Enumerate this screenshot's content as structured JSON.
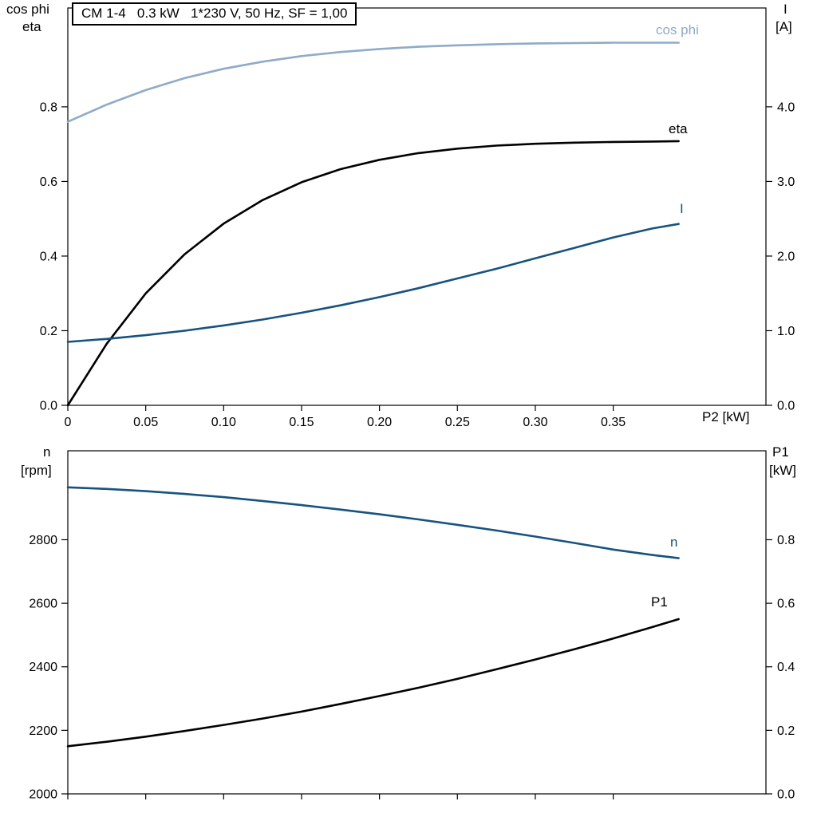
{
  "colors": {
    "light_blue": "#8fabc7",
    "dark_blue": "#17537f",
    "black": "#000000"
  },
  "chart_data": [
    {
      "type": "line",
      "title": "CM 1-4   0.3 kW   1*230 V, 50 Hz, SF = 1,00",
      "xlabel": "P2 [kW]",
      "ylabel_left_1": "cos phi",
      "ylabel_left_2": "eta",
      "ylabel_right_1": "I",
      "ylabel_right_2": "[A]",
      "xlim": [
        0,
        0.448
      ],
      "ylim_left": [
        0,
        1.065
      ],
      "ylim_right": [
        0,
        5.325
      ],
      "grid": false,
      "x_ticks": [
        {
          "v": 0,
          "label": "0"
        },
        {
          "v": 0.05,
          "label": "0.05"
        },
        {
          "v": 0.1,
          "label": "0.10"
        },
        {
          "v": 0.15,
          "label": "0.15"
        },
        {
          "v": 0.2,
          "label": "0.20"
        },
        {
          "v": 0.25,
          "label": "0.25"
        },
        {
          "v": 0.3,
          "label": "0.30"
        },
        {
          "v": 0.35,
          "label": "0.35"
        }
      ],
      "y_ticks_left": [
        {
          "v": 0,
          "label": "0.0"
        },
        {
          "v": 0.2,
          "label": "0.2"
        },
        {
          "v": 0.4,
          "label": "0.4"
        },
        {
          "v": 0.6,
          "label": "0.6"
        },
        {
          "v": 0.8,
          "label": "0.8"
        }
      ],
      "y_ticks_right": [
        {
          "v": 0,
          "label": "0.0"
        },
        {
          "v": 1,
          "label": "1.0"
        },
        {
          "v": 2,
          "label": "2.0"
        },
        {
          "v": 3,
          "label": "3.0"
        },
        {
          "v": 4,
          "label": "4.0"
        }
      ],
      "series": [
        {
          "name": "cos phi",
          "axis": "left",
          "color": "light_blue",
          "x": [
            0,
            0.025,
            0.05,
            0.075,
            0.1,
            0.125,
            0.15,
            0.175,
            0.2,
            0.225,
            0.25,
            0.275,
            0.3,
            0.325,
            0.35,
            0.375,
            0.392
          ],
          "y": [
            0.76,
            0.806,
            0.845,
            0.877,
            0.902,
            0.921,
            0.936,
            0.947,
            0.955,
            0.961,
            0.965,
            0.968,
            0.97,
            0.971,
            0.972,
            0.972,
            0.972
          ]
        },
        {
          "name": "eta",
          "axis": "left",
          "color": "black",
          "x": [
            0,
            0.025,
            0.05,
            0.075,
            0.1,
            0.125,
            0.15,
            0.175,
            0.2,
            0.225,
            0.25,
            0.275,
            0.3,
            0.325,
            0.35,
            0.375,
            0.392
          ],
          "y": [
            0.0,
            0.165,
            0.3,
            0.405,
            0.487,
            0.55,
            0.598,
            0.633,
            0.658,
            0.676,
            0.688,
            0.696,
            0.701,
            0.704,
            0.706,
            0.707,
            0.708
          ]
        },
        {
          "name": "I",
          "axis": "right",
          "color": "dark_blue",
          "x": [
            0,
            0.025,
            0.05,
            0.075,
            0.1,
            0.125,
            0.15,
            0.175,
            0.2,
            0.225,
            0.25,
            0.275,
            0.3,
            0.325,
            0.35,
            0.375,
            0.392
          ],
          "y": [
            0.85,
            0.89,
            0.94,
            1.0,
            1.07,
            1.15,
            1.24,
            1.34,
            1.45,
            1.57,
            1.7,
            1.83,
            1.97,
            2.11,
            2.25,
            2.37,
            2.43
          ]
        }
      ]
    },
    {
      "type": "line",
      "title": "",
      "xlabel": "",
      "ylabel_left_1": "n",
      "ylabel_left_2": "[rpm]",
      "ylabel_right_1": "P1",
      "ylabel_right_2": "[kW]",
      "xlim": [
        0,
        0.448
      ],
      "ylim_left": [
        2000,
        3080
      ],
      "ylim_right": [
        0,
        1.08
      ],
      "grid": false,
      "x_ticks": [
        {
          "v": 0,
          "label": ""
        },
        {
          "v": 0.05,
          "label": ""
        },
        {
          "v": 0.1,
          "label": ""
        },
        {
          "v": 0.15,
          "label": ""
        },
        {
          "v": 0.2,
          "label": ""
        },
        {
          "v": 0.25,
          "label": ""
        },
        {
          "v": 0.3,
          "label": ""
        },
        {
          "v": 0.35,
          "label": ""
        }
      ],
      "y_ticks_left": [
        {
          "v": 2000,
          "label": "2000"
        },
        {
          "v": 2200,
          "label": "2200"
        },
        {
          "v": 2400,
          "label": "2400"
        },
        {
          "v": 2600,
          "label": "2600"
        },
        {
          "v": 2800,
          "label": "2800"
        }
      ],
      "y_ticks_right": [
        {
          "v": 0,
          "label": "0.0"
        },
        {
          "v": 0.2,
          "label": "0.2"
        },
        {
          "v": 0.4,
          "label": "0.4"
        },
        {
          "v": 0.6,
          "label": "0.6"
        },
        {
          "v": 0.8,
          "label": "0.8"
        }
      ],
      "series": [
        {
          "name": "n",
          "axis": "left",
          "color": "dark_blue",
          "x": [
            0,
            0.025,
            0.05,
            0.075,
            0.1,
            0.125,
            0.15,
            0.175,
            0.2,
            0.225,
            0.25,
            0.275,
            0.3,
            0.325,
            0.35,
            0.375,
            0.392
          ],
          "y": [
            2965,
            2960,
            2953,
            2944,
            2934,
            2922,
            2909,
            2895,
            2880,
            2864,
            2847,
            2829,
            2810,
            2790,
            2769,
            2752,
            2742
          ]
        },
        {
          "name": "P1",
          "axis": "right",
          "color": "black",
          "x": [
            0,
            0.025,
            0.05,
            0.075,
            0.1,
            0.125,
            0.15,
            0.175,
            0.2,
            0.225,
            0.25,
            0.275,
            0.3,
            0.325,
            0.35,
            0.375,
            0.392
          ],
          "y": [
            0.15,
            0.164,
            0.18,
            0.198,
            0.217,
            0.237,
            0.259,
            0.283,
            0.308,
            0.334,
            0.362,
            0.392,
            0.423,
            0.455,
            0.489,
            0.525,
            0.55
          ]
        }
      ]
    }
  ]
}
